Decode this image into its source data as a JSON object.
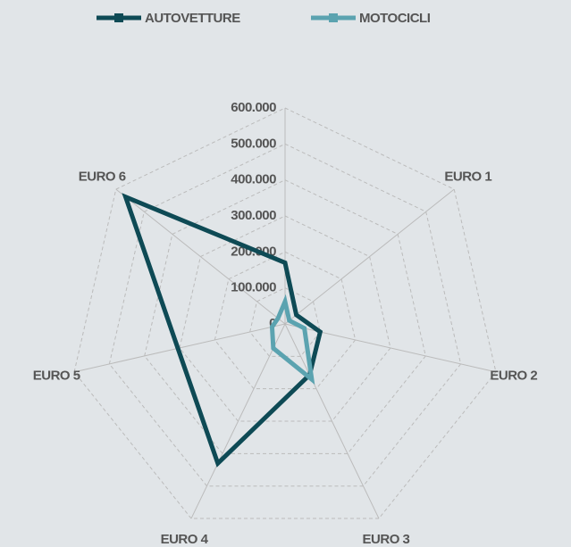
{
  "chart_data": {
    "type": "radar",
    "categories": [
      null,
      "EURO 1",
      "EURO 2",
      "EURO 3",
      "EURO 4",
      "EURO 5",
      "EURO 6"
    ],
    "series": [
      {
        "name": "AUTOVETTURE",
        "color": "#0e4a55",
        "values": [
          170000,
          40000,
          100000,
          157000,
          430000,
          305000,
          566000
        ]
      },
      {
        "name": "MOTOCICLI",
        "color": "#5ba3b0",
        "values": [
          62000,
          15000,
          55000,
          171000,
          75000,
          37000,
          25000
        ]
      }
    ],
    "ylim": [
      0,
      600000
    ],
    "yticks": [
      0,
      {
        "value": 100000,
        "label": "100.000"
      },
      {
        "value": 200000,
        "label": "200.000"
      },
      {
        "value": 300000,
        "label": "300.000"
      },
      {
        "value": 400000,
        "label": "400.000"
      },
      {
        "value": 500000,
        "label": "500.000"
      },
      {
        "value": 600000,
        "label": "600.000"
      }
    ],
    "grid": true,
    "legend": "top"
  }
}
